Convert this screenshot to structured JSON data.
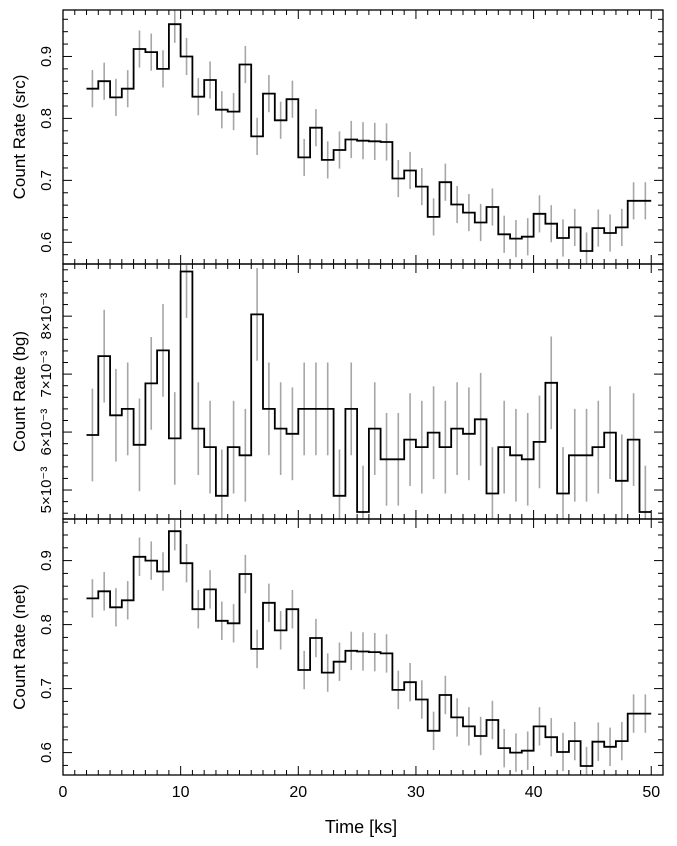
{
  "chart_data": {
    "type": "line",
    "title": "",
    "xlabel": "Time [ks]",
    "xlim": [
      0,
      51
    ],
    "xticks": [
      0,
      10,
      20,
      30,
      40,
      50
    ],
    "xminor": 1,
    "bin_width": 1.0,
    "bin_centers": [
      2.5,
      3.5,
      4.5,
      5.5,
      6.5,
      7.5,
      8.5,
      9.5,
      10.5,
      11.5,
      12.5,
      13.5,
      14.5,
      15.5,
      16.5,
      17.5,
      18.5,
      19.5,
      20.5,
      21.5,
      22.5,
      23.5,
      24.5,
      25.5,
      26.5,
      27.5,
      28.5,
      29.5,
      30.5,
      31.5,
      32.5,
      33.5,
      34.5,
      35.5,
      36.5,
      37.5,
      38.5,
      39.5,
      40.5,
      41.5,
      42.5,
      43.5,
      44.5,
      45.5,
      46.5,
      47.5,
      48.5,
      49.5
    ],
    "panels": [
      {
        "name": "src",
        "ylabel": "Count Rate (src)",
        "ylim": [
          0.565,
          0.975
        ],
        "yticks": [
          0.6,
          0.7,
          0.8,
          0.9
        ],
        "ytick_labels": [
          "0.6",
          "0.7",
          "0.8",
          "0.9"
        ],
        "yminor": 0.02,
        "values": [
          0.848,
          0.86,
          0.834,
          0.848,
          0.912,
          0.907,
          0.88,
          0.952,
          0.9,
          0.835,
          0.862,
          0.814,
          0.811,
          0.887,
          0.771,
          0.84,
          0.797,
          0.831,
          0.737,
          0.785,
          0.733,
          0.749,
          0.766,
          0.764,
          0.763,
          0.762,
          0.703,
          0.716,
          0.69,
          0.641,
          0.697,
          0.661,
          0.648,
          0.632,
          0.657,
          0.613,
          0.606,
          0.609,
          0.646,
          0.63,
          0.607,
          0.624,
          0.586,
          0.623,
          0.615,
          0.624,
          0.667,
          0.667
        ],
        "errors": [
          0.03,
          0.03,
          0.03,
          0.03,
          0.03,
          0.03,
          0.03,
          0.03,
          0.03,
          0.03,
          0.03,
          0.03,
          0.03,
          0.03,
          0.03,
          0.03,
          0.03,
          0.03,
          0.03,
          0.03,
          0.03,
          0.03,
          0.03,
          0.03,
          0.03,
          0.03,
          0.03,
          0.03,
          0.03,
          0.03,
          0.03,
          0.03,
          0.03,
          0.03,
          0.03,
          0.03,
          0.03,
          0.03,
          0.03,
          0.03,
          0.03,
          0.03,
          0.03,
          0.03,
          0.03,
          0.03,
          0.03,
          0.03
        ]
      },
      {
        "name": "bg",
        "ylabel": "Count Rate (bg)",
        "ylim": [
          0.0045,
          0.0089
        ],
        "yticks": [
          0.005,
          0.006,
          0.007,
          0.008
        ],
        "ytick_labels": [
          "5×10⁻³",
          "6×10⁻³",
          "7×10⁻³",
          "8×10⁻³"
        ],
        "yminor": 0.0002,
        "values": [
          0.00595,
          0.00731,
          0.00629,
          0.0064,
          0.00578,
          0.00684,
          0.00741,
          0.00589,
          0.00877,
          0.00606,
          0.00574,
          0.0049,
          0.00574,
          0.0056,
          0.00803,
          0.0064,
          0.00606,
          0.00597,
          0.0064,
          0.0064,
          0.0064,
          0.0049,
          0.0064,
          0.00462,
          0.00606,
          0.00553,
          0.00553,
          0.00587,
          0.00574,
          0.00599,
          0.00574,
          0.00606,
          0.00597,
          0.00622,
          0.00494,
          0.00574,
          0.0056,
          0.00553,
          0.00583,
          0.00685,
          0.00494,
          0.0056,
          0.0056,
          0.00574,
          0.00599,
          0.00516,
          0.00587,
          0.00462
        ],
        "errors": [
          0.0008,
          0.0008,
          0.0008,
          0.0008,
          0.0008,
          0.0008,
          0.0008,
          0.0008,
          0.0008,
          0.0008,
          0.0008,
          0.0008,
          0.0008,
          0.0008,
          0.0008,
          0.0008,
          0.0008,
          0.0008,
          0.0008,
          0.0008,
          0.0008,
          0.0008,
          0.0008,
          0.0008,
          0.0008,
          0.0008,
          0.0008,
          0.0008,
          0.0008,
          0.0008,
          0.0008,
          0.0008,
          0.0008,
          0.0008,
          0.0008,
          0.0008,
          0.0008,
          0.0008,
          0.0008,
          0.0008,
          0.0008,
          0.0008,
          0.0008,
          0.0008,
          0.0008,
          0.0008,
          0.0008,
          0.0008
        ]
      },
      {
        "name": "net",
        "ylabel": "Count Rate (net)",
        "ylim": [
          0.565,
          0.965
        ],
        "yticks": [
          0.6,
          0.7,
          0.8,
          0.9
        ],
        "ytick_labels": [
          "0.6",
          "0.7",
          "0.8",
          "0.9"
        ],
        "yminor": 0.02,
        "values": [
          0.841,
          0.852,
          0.827,
          0.838,
          0.906,
          0.9,
          0.883,
          0.946,
          0.896,
          0.824,
          0.855,
          0.806,
          0.802,
          0.879,
          0.762,
          0.834,
          0.791,
          0.824,
          0.729,
          0.779,
          0.725,
          0.742,
          0.759,
          0.758,
          0.757,
          0.755,
          0.698,
          0.71,
          0.683,
          0.634,
          0.69,
          0.655,
          0.641,
          0.626,
          0.651,
          0.607,
          0.6,
          0.603,
          0.641,
          0.624,
          0.601,
          0.618,
          0.579,
          0.617,
          0.609,
          0.618,
          0.661,
          0.661
        ],
        "errors": [
          0.03,
          0.03,
          0.03,
          0.03,
          0.03,
          0.03,
          0.03,
          0.03,
          0.03,
          0.03,
          0.03,
          0.03,
          0.03,
          0.03,
          0.03,
          0.03,
          0.03,
          0.03,
          0.03,
          0.03,
          0.03,
          0.03,
          0.03,
          0.03,
          0.03,
          0.03,
          0.03,
          0.03,
          0.03,
          0.03,
          0.03,
          0.03,
          0.03,
          0.03,
          0.03,
          0.03,
          0.03,
          0.03,
          0.03,
          0.03,
          0.03,
          0.03,
          0.03,
          0.03,
          0.03,
          0.03,
          0.03,
          0.03
        ]
      }
    ],
    "grid": false,
    "legend": "none",
    "step_color": "#000000",
    "error_color": "#a6a6a6"
  }
}
